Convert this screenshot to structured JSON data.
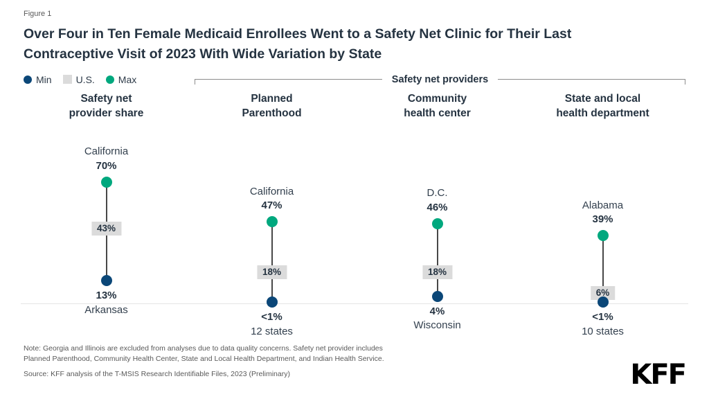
{
  "figure_label": "Figure 1",
  "title": "Over Four in Ten Female Medicaid Enrollees Went to a Safety Net Clinic for Their Last Contraceptive Visit of 2023 With Wide Variation by State",
  "legend": {
    "min": "Min",
    "us": "U.S.",
    "max": "Max"
  },
  "bracket_label": "Safety net providers",
  "colors": {
    "min": "#0B4778",
    "max": "#00A87E",
    "us_box_bg": "#DBDBDB",
    "title": "#253341",
    "note": "#595959"
  },
  "note": "Note: Georgia and Illinois are excluded from analyses due to data quality concerns. Safety net provider includes Planned Parenthood, Community Health Center, State and Local Health Department, and Indian Health Service.",
  "source": "Source: KFF analysis of the T-MSIS Research Identifiable Files, 2023 (Preliminary)",
  "logo": "KFF",
  "chart_data": {
    "type": "dot-range",
    "unit": "%",
    "ylim": [
      0,
      75
    ],
    "legend": [
      "Min",
      "U.S.",
      "Max"
    ],
    "group_label": "Safety net providers",
    "group_applies_to_columns": [
      1,
      2,
      3
    ],
    "columns": [
      {
        "header": [
          "Safety net",
          "provider share"
        ],
        "max": {
          "state": "California",
          "value": 70,
          "display": "70%"
        },
        "us": {
          "value": 43,
          "display": "43%"
        },
        "min": {
          "value": 13,
          "display": "13%",
          "sublabel": "Arkansas"
        }
      },
      {
        "header": [
          "Planned",
          "Parenthood"
        ],
        "max": {
          "state": "California",
          "value": 47,
          "display": "47%"
        },
        "us": {
          "value": 18,
          "display": "18%"
        },
        "min": {
          "value": 0.5,
          "display": "<1%",
          "sublabel": "12 states"
        }
      },
      {
        "header": [
          "Community",
          "health center"
        ],
        "max": {
          "state": "D.C.",
          "value": 46,
          "display": "46%"
        },
        "us": {
          "value": 18,
          "display": "18%"
        },
        "min": {
          "value": 4,
          "display": "4%",
          "sublabel": "Wisconsin"
        }
      },
      {
        "header": [
          "State and local",
          "health department"
        ],
        "max": {
          "state": "Alabama",
          "value": 39,
          "display": "39%"
        },
        "us": {
          "value": 6,
          "display": "6%"
        },
        "min": {
          "value": 0.5,
          "display": "<1%",
          "sublabel": "10 states"
        }
      }
    ]
  }
}
